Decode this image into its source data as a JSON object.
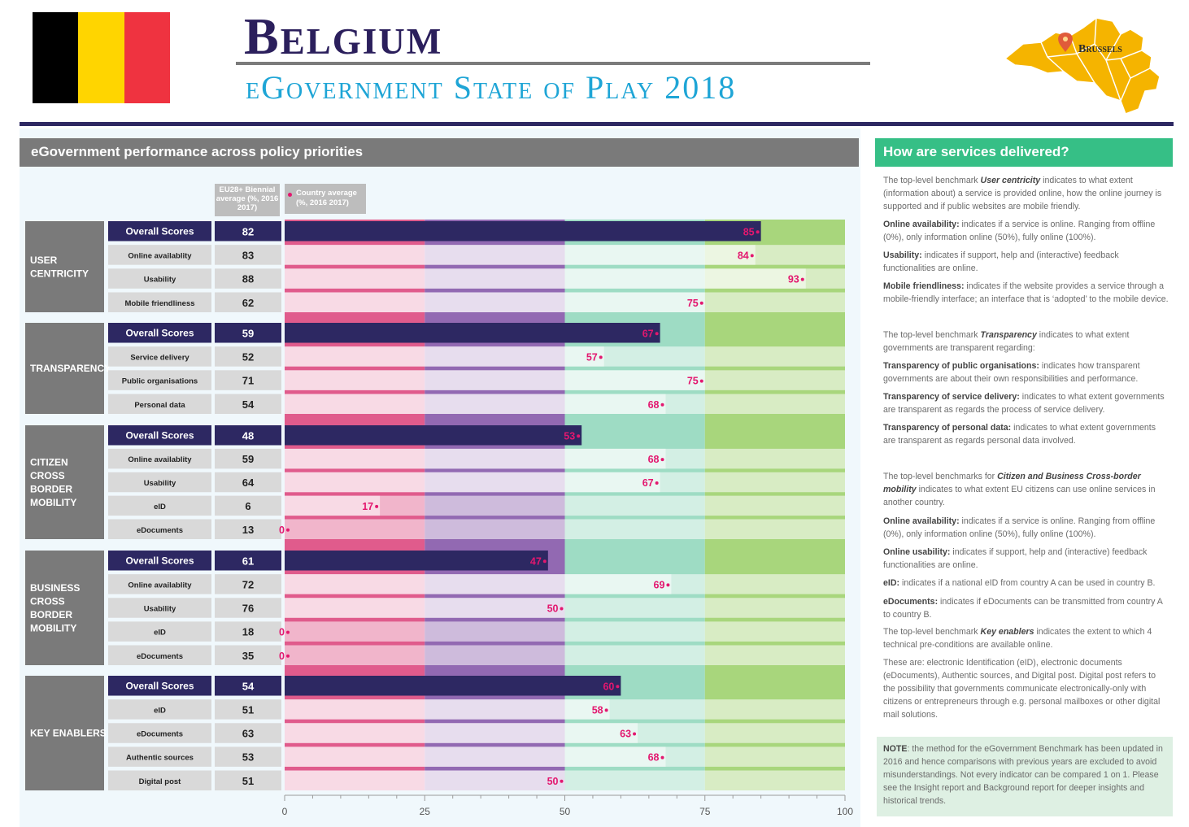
{
  "header": {
    "title": "Belgium",
    "subtitle": "eGovernment State of Play 2018",
    "map_label": "Brussels",
    "flag_colors": [
      "#000000",
      "#ffd500",
      "#ef3340"
    ]
  },
  "left_panel": {
    "heading": "eGovernment performance across policy priorities",
    "legend_eu": "EU28+ Biennial average (%, 2016 2017)",
    "legend_country": "Country average (%, 2016 2017)"
  },
  "chart_data": {
    "type": "bar",
    "orientation": "horizontal",
    "xlim": [
      0,
      100
    ],
    "xticks": [
      "0",
      "25",
      "50",
      "75",
      "100"
    ],
    "columns": [
      "EU28+ Biennial average (%, 2016 2017)",
      "Country average (%, 2016 2017)"
    ],
    "background_bands": [
      {
        "from": 0,
        "to": 25,
        "color": "#e05b8c"
      },
      {
        "from": 25,
        "to": 50,
        "color": "#9269b2"
      },
      {
        "from": 50,
        "to": 75,
        "color": "#9edcc4"
      },
      {
        "from": 75,
        "to": 100,
        "color": "#a8d67c"
      }
    ],
    "groups": [
      {
        "name": "User centricity",
        "rows": [
          {
            "label": "Overall Scores",
            "eu": "82",
            "value": 85,
            "overall": true
          },
          {
            "label": "Online availablity",
            "eu": "83",
            "value": 84
          },
          {
            "label": "Usability",
            "eu": "88",
            "value": 93
          },
          {
            "label": "Mobile friendliness",
            "eu": "62",
            "value": 75
          }
        ]
      },
      {
        "name": "Transparency",
        "rows": [
          {
            "label": "Overall Scores",
            "eu": "59",
            "value": 67,
            "overall": true
          },
          {
            "label": "Service delivery",
            "eu": "52",
            "value": 57
          },
          {
            "label": "Public organisations",
            "eu": "71",
            "value": 75
          },
          {
            "label": "Personal data",
            "eu": "54",
            "value": 68
          }
        ]
      },
      {
        "name": "Citizen Cross Border Mobility",
        "rows": [
          {
            "label": "Overall Scores",
            "eu": "48",
            "value": 53,
            "overall": true
          },
          {
            "label": "Online availablity",
            "eu": "59",
            "value": 68
          },
          {
            "label": "Usability",
            "eu": "64",
            "value": 67
          },
          {
            "label": "eID",
            "eu": "6",
            "value": 17
          },
          {
            "label": "eDocuments",
            "eu": "13",
            "value": 0
          }
        ]
      },
      {
        "name": "Business Cross Border Mobility",
        "rows": [
          {
            "label": "Overall Scores",
            "eu": "61",
            "value": 47,
            "overall": true
          },
          {
            "label": "Online availablity",
            "eu": "72",
            "value": 69
          },
          {
            "label": "Usability",
            "eu": "76",
            "value": 50
          },
          {
            "label": "eID",
            "eu": "18",
            "value": 0
          },
          {
            "label": "eDocuments",
            "eu": "35",
            "value": 0
          }
        ]
      },
      {
        "name": "Key Enablers",
        "rows": [
          {
            "label": "Overall Scores",
            "eu": "54",
            "value": 60,
            "overall": true
          },
          {
            "label": "eID",
            "eu": "51",
            "value": 58
          },
          {
            "label": "eDocuments",
            "eu": "63",
            "value": 63
          },
          {
            "label": "Authentic sources",
            "eu": "53",
            "value": 68
          },
          {
            "label": "Digital post",
            "eu": "51",
            "value": 50
          }
        ]
      }
    ]
  },
  "right_panel": {
    "heading": "How are services delivered?",
    "sections": [
      {
        "runs": [
          {
            "t": "The top-level benchmark "
          },
          {
            "t": "User centricity",
            "b": true,
            "i": true
          },
          {
            "t": " indicates to what extent (information about) a service is provided online, how the online journey is supported and if public websites are mobile friendly."
          }
        ]
      },
      {
        "runs": [
          {
            "t": "Online availability:",
            "b": true
          },
          {
            "t": " indicates if a service is online. Ranging from offline (0%), only information online (50%), fully online (100%)."
          }
        ]
      },
      {
        "runs": [
          {
            "t": "Usability:",
            "b": true
          },
          {
            "t": " indicates if support, help and (interactive) feedback functionalities are online."
          }
        ]
      },
      {
        "runs": [
          {
            "t": "Mobile friendliness:",
            "b": true
          },
          {
            "t": " indicates if the website provides a service through a mobile-friendly interface; an interface that is ‘adopted’ to the mobile device."
          }
        ]
      },
      {
        "runs": [
          {
            "t": "The top-level benchmark "
          },
          {
            "t": "Transparency",
            "b": true,
            "i": true
          },
          {
            "t": " indicates to what extent governments are transparent regarding:"
          }
        ]
      },
      {
        "runs": [
          {
            "t": "Transparency of public organisations:",
            "b": true
          },
          {
            "t": " indicates how transparent governments are about their own responsibilities and performance."
          }
        ]
      },
      {
        "runs": [
          {
            "t": "Transparency of service delivery:",
            "b": true
          },
          {
            "t": " indicates to what extent governments are transparent as regards the process of service delivery."
          }
        ]
      },
      {
        "runs": [
          {
            "t": "Transparency of personal data:",
            "b": true
          },
          {
            "t": " indicates to what extent governments are transparent as regards personal data involved."
          }
        ]
      },
      {
        "runs": [
          {
            "t": "The top-level benchmarks for "
          },
          {
            "t": "Citizen and Business Cross-border mobility",
            "b": true,
            "i": true
          },
          {
            "t": " indicates to what extent EU citizens can use online services in another country."
          }
        ]
      },
      {
        "runs": [
          {
            "t": "Online availability:",
            "b": true
          },
          {
            "t": " indicates if a service is online. Ranging from offline (0%), only information online (50%), fully online (100%)."
          }
        ]
      },
      {
        "runs": [
          {
            "t": "Online usability:",
            "b": true
          },
          {
            "t": " indicates if support, help and (interactive) feedback functionalities are online."
          }
        ]
      },
      {
        "runs": [
          {
            "t": "eID:",
            "b": true
          },
          {
            "t": " indicates if a national eID from country A can be used in country B."
          }
        ]
      },
      {
        "runs": [
          {
            "t": "eDocuments:",
            "b": true
          },
          {
            "t": " indicates if eDocuments can be transmitted from country A to country B."
          }
        ]
      },
      {
        "runs": [
          {
            "t": "The top-level benchmark "
          },
          {
            "t": "Key enablers",
            "b": true,
            "i": true
          },
          {
            "t": " indicates the extent to which 4 technical pre-conditions are available online."
          }
        ]
      },
      {
        "runs": [
          {
            "t": "These are: electronic Identification (eID), electronic documents (eDocuments), Authentic sources, and Digital post. Digital post refers to the possibility that governments communicate electronically-only with citizens or entrepreneurs through e.g. personal mailboxes or other digital mail solutions."
          }
        ]
      }
    ],
    "note": {
      "runs": [
        {
          "t": "NOTE",
          "b": true
        },
        {
          "t": ": the method for the eGovernment Benchmark has been updated in 2016 and hence comparisons with previous years are excluded to avoid misunderstandings. Not every indicator can be compared 1 on 1. Please see the Insight report and Background report for deeper insights and historical trends."
        }
      ]
    }
  }
}
